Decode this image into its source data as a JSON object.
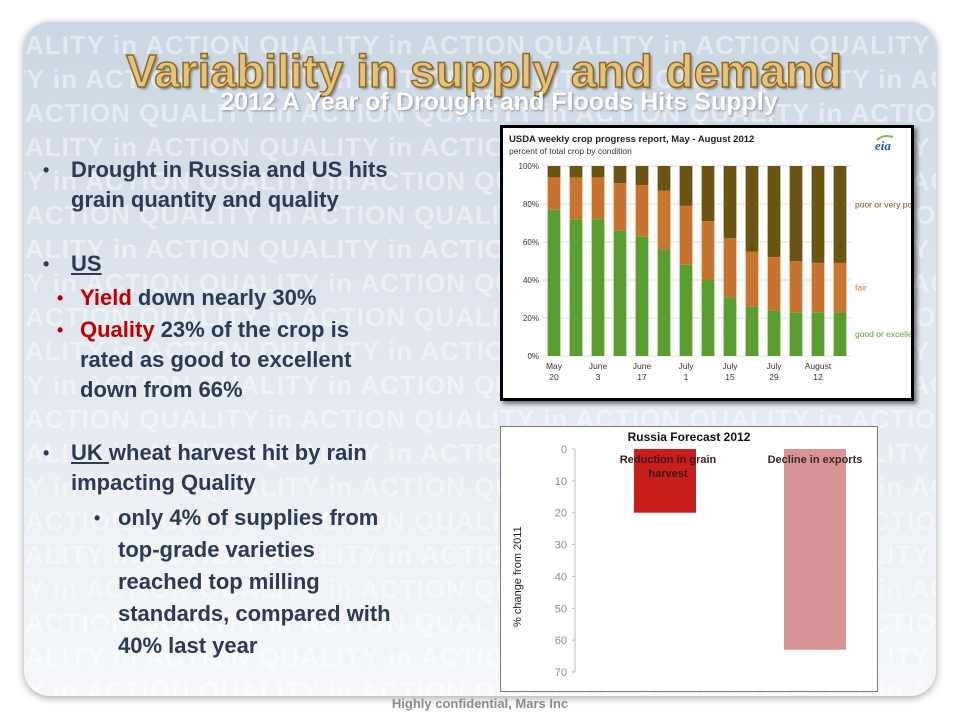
{
  "slide": {
    "title": "Variability in supply and demand",
    "subtitle": "2012 A Year of Drought and Floods Hits Supply",
    "watermark_text": "QUALITY in ACTION",
    "footer": "Highly confidential, Mars Inc"
  },
  "bullets": {
    "b1_line1": "Drought in Russia and US hits",
    "b1_line2": "grain quantity and quality",
    "us_label": "US",
    "yield_word": "Yield",
    "yield_rest": " down nearly 30%",
    "quality_word": "Quality",
    "quality_rest": " 23% of the crop is",
    "quality_line2": "rated as good to excellent",
    "quality_line3": "down from 66%",
    "uk_label": "UK ",
    "uk_rest": "wheat harvest hit by rain",
    "uk_line2": "impacting Quality",
    "sub_line1": "only 4% of supplies from",
    "sub_line2": "top-grade varieties",
    "sub_line3": "reached top milling",
    "sub_line4": "standards, compared with",
    "sub_line5": "40% last year"
  },
  "chart_data": [
    {
      "type": "bar",
      "stacked": true,
      "title": "USDA weekly crop progress report, May - August 2012",
      "subtitle": "percent of total crop by condition",
      "source_logo": "eia",
      "ylim": [
        0,
        100
      ],
      "y_ticks": [
        "0%",
        "20%",
        "40%",
        "60%",
        "80%",
        "100%"
      ],
      "x_tick_labels": [
        {
          "month": "May",
          "day": "20"
        },
        {
          "month": "June",
          "day": "3"
        },
        {
          "month": "June",
          "day": "17"
        },
        {
          "month": "July",
          "day": "1"
        },
        {
          "month": "July",
          "day": "15"
        },
        {
          "month": "July",
          "day": "29"
        },
        {
          "month": "August",
          "day": "12"
        }
      ],
      "legend_placement": "right",
      "series": [
        {
          "name": "good or excellent",
          "color": "#5a9e2f",
          "values": [
            77,
            72,
            72,
            66,
            63,
            56,
            48,
            40,
            31,
            26,
            24,
            23,
            23,
            23
          ]
        },
        {
          "name": "fair",
          "color": "#c8742c",
          "values": [
            17,
            22,
            22,
            25,
            27,
            31,
            31,
            31,
            31,
            29,
            28,
            27,
            26,
            26
          ]
        },
        {
          "name": "poor or very poor",
          "color": "#6b5412",
          "values": [
            6,
            6,
            6,
            9,
            10,
            13,
            21,
            29,
            38,
            45,
            48,
            50,
            51,
            51
          ]
        }
      ]
    },
    {
      "type": "bar",
      "title": "Russia Forecast 2012",
      "ylabel": "% change from 2011",
      "inverted_axis": true,
      "ylim": [
        0,
        70
      ],
      "y_ticks": [
        "0",
        "10",
        "20",
        "30",
        "40",
        "50",
        "60",
        "70"
      ],
      "categories": [
        "Reduction in grain harvest",
        "Decline in exports"
      ],
      "values": [
        20,
        63
      ],
      "colors": [
        "#c81e1e",
        "#d99594"
      ]
    }
  ]
}
